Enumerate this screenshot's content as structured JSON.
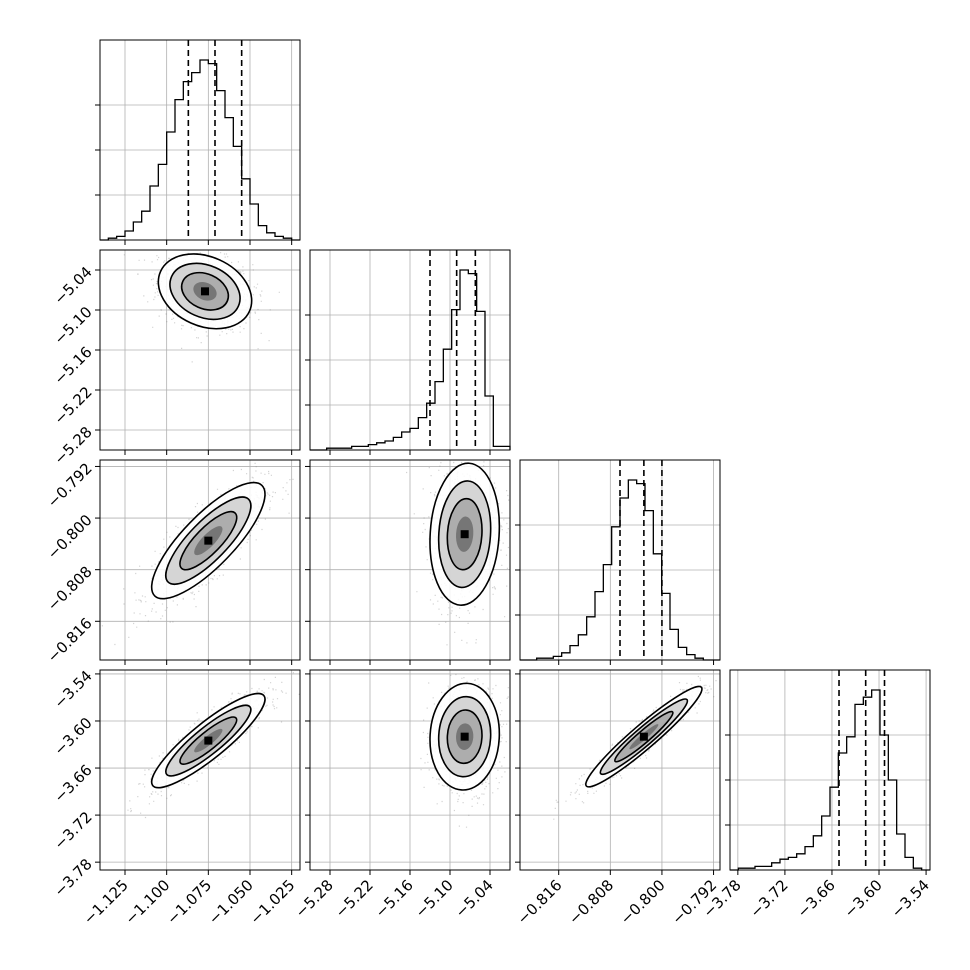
{
  "chart_data": {
    "type": "corner",
    "title": "",
    "parameters": [
      {
        "index": 0,
        "range": [
          -1.14,
          -1.02
        ],
        "ticks": [
          -1.125,
          -1.1,
          -1.075,
          -1.05,
          -1.025
        ],
        "tick_labels": [
          "−1.125",
          "−1.100",
          "−1.075",
          "−1.050",
          "−1.025"
        ],
        "quantiles": [
          -1.087,
          -1.071,
          -1.055
        ],
        "hist": [
          0.0,
          0.01,
          0.02,
          0.05,
          0.1,
          0.16,
          0.3,
          0.42,
          0.6,
          0.78,
          0.88,
          0.93,
          1.0,
          0.98,
          0.83,
          0.68,
          0.52,
          0.34,
          0.2,
          0.08,
          0.04,
          0.02,
          0.01,
          0.0
        ]
      },
      {
        "index": 1,
        "range": [
          -5.31,
          -5.01
        ],
        "ticks": [
          -5.28,
          -5.22,
          -5.16,
          -5.1,
          -5.04
        ],
        "tick_labels": [
          "−5.28",
          "−5.22",
          "−5.16",
          "−5.10",
          "−5.04"
        ],
        "quantiles": [
          -5.13,
          -5.09,
          -5.062
        ],
        "hist": [
          0.0,
          0.0,
          0.01,
          0.01,
          0.01,
          0.02,
          0.02,
          0.03,
          0.04,
          0.05,
          0.07,
          0.1,
          0.12,
          0.18,
          0.26,
          0.38,
          0.56,
          0.78,
          1.0,
          0.98,
          0.77,
          0.3,
          0.02,
          0.02
        ]
      },
      {
        "index": 2,
        "range": [
          -0.822,
          -0.791
        ],
        "ticks": [
          -0.816,
          -0.808,
          -0.8,
          -0.792
        ],
        "tick_labels": [
          "−0.816",
          "−0.808",
          "−0.800",
          "−0.792"
        ],
        "quantiles": [
          -0.8065,
          -0.8028,
          -0.8
        ],
        "hist": [
          0.0,
          0.0,
          0.01,
          0.01,
          0.02,
          0.04,
          0.08,
          0.14,
          0.24,
          0.38,
          0.53,
          0.74,
          0.9,
          1.0,
          0.98,
          0.83,
          0.59,
          0.37,
          0.17,
          0.07,
          0.03,
          0.01,
          0.0,
          0.0
        ]
      },
      {
        "index": 3,
        "range": [
          -3.79,
          -3.535
        ],
        "ticks": [
          -3.78,
          -3.72,
          -3.66,
          -3.6,
          -3.54
        ],
        "tick_labels": [
          "−3.78",
          "−3.72",
          "−3.66",
          "−3.60",
          "−3.54"
        ],
        "quantiles": [
          -3.651,
          -3.617,
          -3.593
        ],
        "hist": [
          0.0,
          0.01,
          0.01,
          0.02,
          0.02,
          0.04,
          0.06,
          0.07,
          0.09,
          0.13,
          0.19,
          0.3,
          0.46,
          0.65,
          0.74,
          0.92,
          0.96,
          1.0,
          0.75,
          0.5,
          0.2,
          0.07,
          0.01,
          0.0
        ]
      }
    ],
    "pairs": [
      {
        "row": 1,
        "col": 0,
        "center": [
          -1.077,
          -5.072
        ],
        "sigma": [
          0.014,
          0.028
        ],
        "rho": -0.25
      },
      {
        "row": 2,
        "col": 0,
        "center": [
          -1.075,
          -0.8035
        ],
        "sigma": [
          0.017,
          0.0045
        ],
        "rho": 0.8
      },
      {
        "row": 2,
        "col": 1,
        "center": [
          -5.078,
          -0.8025
        ],
        "sigma": [
          0.026,
          0.0055
        ],
        "rho": 0.1
      },
      {
        "row": 3,
        "col": 0,
        "center": [
          -1.075,
          -3.625
        ],
        "sigma": [
          0.017,
          0.03
        ],
        "rho": 0.88
      },
      {
        "row": 3,
        "col": 1,
        "center": [
          -5.078,
          -3.62
        ],
        "sigma": [
          0.026,
          0.034
        ],
        "rho": 0.05
      },
      {
        "row": 3,
        "col": 2,
        "center": [
          -0.8028,
          -3.62
        ],
        "sigma": [
          0.0045,
          0.032
        ],
        "rho": 0.95
      }
    ],
    "grid": true,
    "colors": {
      "line": "#000000",
      "grid": "#b0b0b0",
      "points": "#808080"
    }
  }
}
